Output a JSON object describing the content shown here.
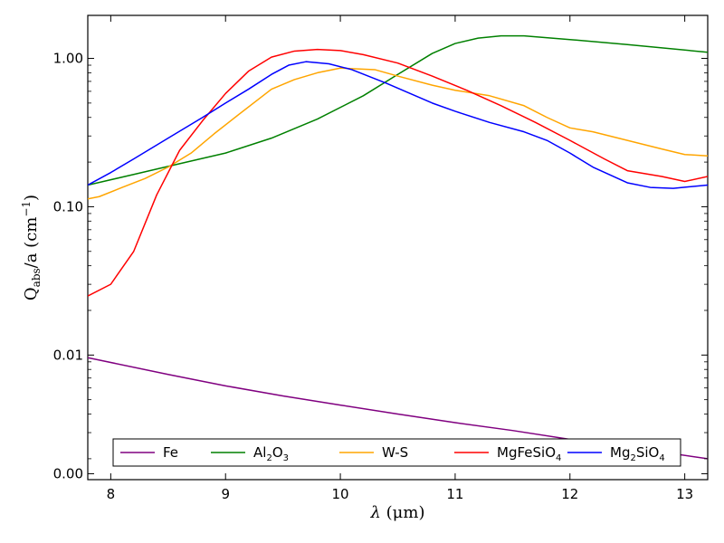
{
  "chart_data": {
    "type": "line",
    "title": "",
    "xlabel": "λ (μm)",
    "ylabel": "Q_abs/a (cm⁻¹)",
    "xlabel_parts": {
      "var": "λ",
      "unit": "(μm)"
    },
    "ylabel_parts": {
      "base": "Q",
      "sub": "abs",
      "tail": "/a (cm",
      "sup": "−1",
      "close": ")"
    },
    "xlim": [
      7.8,
      13.2
    ],
    "ylim_log": [
      -2.84,
      0.29
    ],
    "yscale": "log",
    "x_ticks": [
      {
        "value": 8,
        "label": "8"
      },
      {
        "value": 9,
        "label": "9"
      },
      {
        "value": 10,
        "label": "10"
      },
      {
        "value": 11,
        "label": "11"
      },
      {
        "value": 12,
        "label": "12"
      },
      {
        "value": 13,
        "label": "13"
      }
    ],
    "y_ticks": [
      {
        "log_value": -2.8,
        "label": "0.00"
      },
      {
        "log_value": -2,
        "label": "0.01"
      },
      {
        "log_value": -1,
        "label": "0.10"
      },
      {
        "log_value": 0,
        "label": "1.00"
      }
    ],
    "legend_position": "bottom-center",
    "grid": false,
    "series": [
      {
        "name": "Fe",
        "label": "Fe",
        "color": "#800080",
        "points": [
          [
            7.8,
            0.0096
          ],
          [
            8.5,
            0.0074
          ],
          [
            9.0,
            0.0062
          ],
          [
            9.5,
            0.0053
          ],
          [
            10.0,
            0.0046
          ],
          [
            10.5,
            0.004
          ],
          [
            11.0,
            0.0035
          ],
          [
            11.5,
            0.0031
          ],
          [
            12.0,
            0.0027
          ],
          [
            12.5,
            0.0024
          ],
          [
            13.2,
            0.002
          ]
        ]
      },
      {
        "name": "Al2O3",
        "label": {
          "a": "Al",
          "s1": "2",
          "b": "O",
          "s2": "3"
        },
        "color": "#008000",
        "points": [
          [
            7.8,
            0.14
          ],
          [
            8.2,
            0.165
          ],
          [
            8.6,
            0.195
          ],
          [
            9.0,
            0.23
          ],
          [
            9.4,
            0.29
          ],
          [
            9.8,
            0.39
          ],
          [
            10.2,
            0.56
          ],
          [
            10.5,
            0.78
          ],
          [
            10.8,
            1.08
          ],
          [
            11.0,
            1.26
          ],
          [
            11.2,
            1.37
          ],
          [
            11.4,
            1.42
          ],
          [
            11.6,
            1.42
          ],
          [
            12.0,
            1.34
          ],
          [
            12.5,
            1.24
          ],
          [
            13.2,
            1.1
          ]
        ]
      },
      {
        "name": "W-S",
        "label": "W-S",
        "color": "#FFA500",
        "points": [
          [
            7.8,
            0.113
          ],
          [
            7.9,
            0.117
          ],
          [
            8.1,
            0.135
          ],
          [
            8.3,
            0.155
          ],
          [
            8.5,
            0.185
          ],
          [
            8.7,
            0.23
          ],
          [
            8.9,
            0.31
          ],
          [
            9.1,
            0.41
          ],
          [
            9.4,
            0.62
          ],
          [
            9.6,
            0.72
          ],
          [
            9.8,
            0.8
          ],
          [
            10.0,
            0.86
          ],
          [
            10.3,
            0.84
          ],
          [
            10.5,
            0.76
          ],
          [
            10.8,
            0.66
          ],
          [
            11.0,
            0.61
          ],
          [
            11.3,
            0.56
          ],
          [
            11.6,
            0.48
          ],
          [
            11.8,
            0.4
          ],
          [
            12.0,
            0.34
          ],
          [
            12.2,
            0.32
          ],
          [
            12.5,
            0.28
          ],
          [
            12.8,
            0.245
          ],
          [
            13.0,
            0.225
          ],
          [
            13.2,
            0.22
          ]
        ]
      },
      {
        "name": "MgFeSiO4",
        "label": {
          "a": "MgFeSiO",
          "s1": "4"
        },
        "color": "#FF0000",
        "points": [
          [
            7.8,
            0.025
          ],
          [
            8.0,
            0.03
          ],
          [
            8.2,
            0.05
          ],
          [
            8.4,
            0.12
          ],
          [
            8.6,
            0.24
          ],
          [
            8.8,
            0.38
          ],
          [
            9.0,
            0.58
          ],
          [
            9.2,
            0.82
          ],
          [
            9.4,
            1.02
          ],
          [
            9.6,
            1.12
          ],
          [
            9.8,
            1.15
          ],
          [
            10.0,
            1.13
          ],
          [
            10.2,
            1.06
          ],
          [
            10.5,
            0.93
          ],
          [
            10.8,
            0.76
          ],
          [
            11.1,
            0.61
          ],
          [
            11.4,
            0.48
          ],
          [
            11.7,
            0.37
          ],
          [
            12.0,
            0.28
          ],
          [
            12.3,
            0.21
          ],
          [
            12.5,
            0.175
          ],
          [
            12.8,
            0.16
          ],
          [
            13.0,
            0.148
          ],
          [
            13.2,
            0.16
          ]
        ]
      },
      {
        "name": "Mg2SiO4",
        "label": {
          "a": "Mg",
          "s1": "2",
          "b": "SiO",
          "s2": "4"
        },
        "color": "#0000FF",
        "points": [
          [
            7.8,
            0.14
          ],
          [
            8.0,
            0.17
          ],
          [
            8.2,
            0.21
          ],
          [
            8.5,
            0.29
          ],
          [
            8.8,
            0.4
          ],
          [
            9.0,
            0.5
          ],
          [
            9.2,
            0.62
          ],
          [
            9.4,
            0.78
          ],
          [
            9.55,
            0.9
          ],
          [
            9.7,
            0.95
          ],
          [
            9.9,
            0.92
          ],
          [
            10.1,
            0.84
          ],
          [
            10.4,
            0.68
          ],
          [
            10.8,
            0.5
          ],
          [
            11.0,
            0.44
          ],
          [
            11.3,
            0.37
          ],
          [
            11.6,
            0.32
          ],
          [
            11.8,
            0.28
          ],
          [
            12.0,
            0.23
          ],
          [
            12.2,
            0.185
          ],
          [
            12.5,
            0.145
          ],
          [
            12.7,
            0.135
          ],
          [
            12.9,
            0.133
          ],
          [
            13.2,
            0.14
          ]
        ]
      }
    ]
  }
}
